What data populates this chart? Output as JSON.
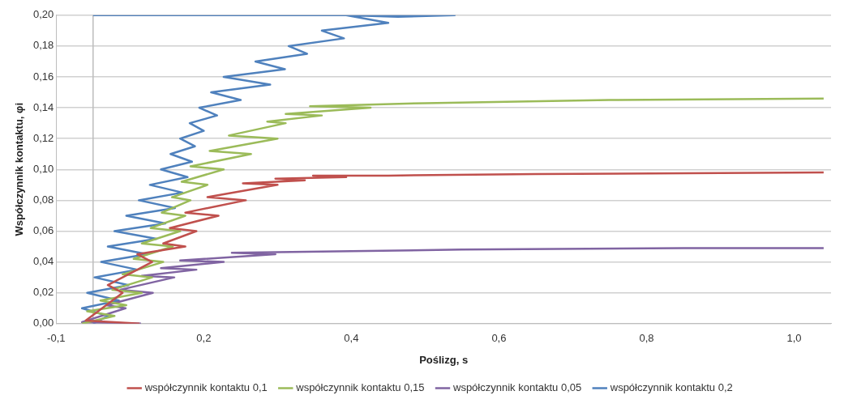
{
  "chart_data": {
    "type": "line",
    "xlabel": "Poślizg, s",
    "ylabel": "Współczynnik kontaktu, φi",
    "xlim": [
      -0.05,
      1.0
    ],
    "xticks": [
      {
        "value": -0.05,
        "label": "-0,1"
      },
      {
        "value": 0.15,
        "label": "0,2"
      },
      {
        "value": 0.35,
        "label": "0,4"
      },
      {
        "value": 0.55,
        "label": "0,6"
      },
      {
        "value": 0.75,
        "label": "0,8"
      },
      {
        "value": 0.95,
        "label": "1,0"
      }
    ],
    "ylim": [
      0,
      0.2
    ],
    "yticks": [
      {
        "value": 0,
        "label": "0,00"
      },
      {
        "value": 0.02,
        "label": "0,02"
      },
      {
        "value": 0.04,
        "label": "0,04"
      },
      {
        "value": 0.06,
        "label": "0,06"
      },
      {
        "value": 0.08,
        "label": "0,08"
      },
      {
        "value": 0.1,
        "label": "0,10"
      },
      {
        "value": 0.12,
        "label": "0,12"
      },
      {
        "value": 0.14,
        "label": "0,14"
      },
      {
        "value": 0.16,
        "label": "0,16"
      },
      {
        "value": 0.18,
        "label": "0,18"
      },
      {
        "value": 0.2,
        "label": "0,20"
      }
    ],
    "grid": "y",
    "legend": "bottom",
    "ref_lines": [
      {
        "axis": "x",
        "value": 0,
        "color": "#bdbdbd"
      }
    ],
    "marker": "none",
    "line_style": "solid",
    "series": [
      {
        "name": "współczynnik kontaktu 0,1",
        "color": "#c0504d",
        "x": [
          0.063,
          -0.01,
          0.04,
          0.02,
          0.08,
          0.06,
          0.125,
          0.095,
          0.14,
          0.104,
          0.17,
          0.125,
          0.207,
          0.155,
          0.25,
          0.203,
          0.287,
          0.247,
          0.343,
          0.298,
          0.4,
          0.6,
          0.99
        ],
        "values": [
          0,
          0.002,
          0.02,
          0.025,
          0.04,
          0.045,
          0.05,
          0.052,
          0.06,
          0.062,
          0.07,
          0.072,
          0.08,
          0.082,
          0.09,
          0.091,
          0.093,
          0.094,
          0.095,
          0.096,
          0.096,
          0.097,
          0.098
        ]
      },
      {
        "name": "współczynnik kontaktu 0,15",
        "color": "#9bbb59",
        "x": [
          -0.015,
          0.029,
          -0.008,
          0.045,
          0.01,
          0.066,
          0.026,
          0.08,
          0.04,
          0.095,
          0.055,
          0.108,
          0.066,
          0.118,
          0.078,
          0.125,
          0.093,
          0.132,
          0.107,
          0.155,
          0.12,
          0.177,
          0.132,
          0.214,
          0.158,
          0.25,
          0.184,
          0.261,
          0.236,
          0.31,
          0.261,
          0.376,
          0.294,
          0.45,
          0.7,
          0.99
        ],
        "values": [
          0,
          0.005,
          0.008,
          0.012,
          0.015,
          0.02,
          0.022,
          0.03,
          0.032,
          0.04,
          0.042,
          0.05,
          0.052,
          0.06,
          0.062,
          0.07,
          0.072,
          0.08,
          0.082,
          0.09,
          0.092,
          0.1,
          0.102,
          0.11,
          0.112,
          0.12,
          0.122,
          0.13,
          0.131,
          0.135,
          0.136,
          0.14,
          0.141,
          0.143,
          0.145,
          0.146
        ]
      },
      {
        "name": "współczynnik kontaktu 0,05",
        "color": "#8064a2",
        "x": [
          0.065,
          -0.015,
          0.044,
          0.018,
          0.081,
          0.037,
          0.11,
          0.066,
          0.14,
          0.092,
          0.177,
          0.118,
          0.247,
          0.188,
          0.35,
          0.5,
          0.8,
          0.99
        ],
        "values": [
          0,
          0.001,
          0.01,
          0.012,
          0.02,
          0.022,
          0.03,
          0.031,
          0.035,
          0.036,
          0.04,
          0.041,
          0.045,
          0.046,
          0.047,
          0.048,
          0.049,
          0.049
        ]
      },
      {
        "name": "współczynnik kontaktu 0,2",
        "color": "#4f81bd",
        "x": [
          0.0,
          0.02,
          -0.015,
          0.035,
          -0.008,
          0.048,
          0.002,
          0.06,
          0.011,
          0.073,
          0.02,
          0.086,
          0.029,
          0.098,
          0.045,
          0.111,
          0.062,
          0.121,
          0.077,
          0.128,
          0.092,
          0.134,
          0.105,
          0.138,
          0.118,
          0.15,
          0.131,
          0.168,
          0.144,
          0.2,
          0.16,
          0.24,
          0.177,
          0.26,
          0.22,
          0.29,
          0.265,
          0.34,
          0.31,
          0.4,
          0.343,
          0.413,
          0.49,
          0.0
        ],
        "values": [
          0,
          0.005,
          0.01,
          0.015,
          0.02,
          0.025,
          0.03,
          0.035,
          0.04,
          0.045,
          0.05,
          0.055,
          0.06,
          0.065,
          0.07,
          0.075,
          0.08,
          0.085,
          0.09,
          0.095,
          0.1,
          0.105,
          0.11,
          0.115,
          0.12,
          0.125,
          0.13,
          0.135,
          0.14,
          0.145,
          0.15,
          0.155,
          0.16,
          0.165,
          0.17,
          0.175,
          0.18,
          0.185,
          0.19,
          0.195,
          0.2,
          0.199,
          0.2,
          0.2
        ]
      }
    ]
  }
}
